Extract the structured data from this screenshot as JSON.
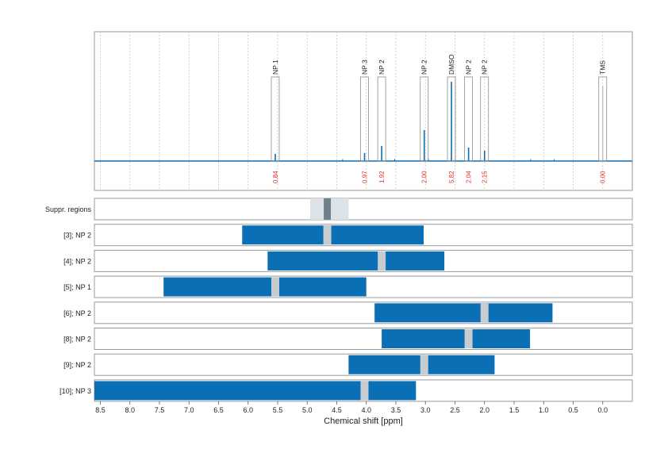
{
  "chart_data": {
    "type": "nmr-spectrum-with-range-bars",
    "xlabel": "Chemical shift [ppm]",
    "x_reversed": true,
    "xlim": [
      8.6,
      -0.5
    ],
    "x_ticks": [
      8.5,
      8.0,
      7.5,
      7.0,
      6.5,
      6.0,
      5.5,
      5.0,
      4.5,
      4.0,
      3.5,
      3.0,
      2.5,
      2.0,
      1.5,
      1.0,
      0.5,
      0.0
    ],
    "x_tick_labels": [
      "8.5",
      "8.0",
      "7.5",
      "7.0",
      "6.5",
      "6.0",
      "5.5",
      "5.0",
      "4.5",
      "4.0",
      "3.5",
      "3.0",
      "2.5",
      "2.0",
      "1.5",
      "1.0",
      "0.5",
      "0.0"
    ],
    "grid": true,
    "colors": {
      "spectrum": "#0a6fb5",
      "bar": "#0a6fb5",
      "marker": "#c7ccd1",
      "integral_text": "#e0322a",
      "suppr_light": "#dde2e8",
      "suppr_dark": "#6e7f8e",
      "frame": "#9a9a9a"
    },
    "peaks": [
      {
        "label": "NP 1",
        "shift": 5.54,
        "integral": "0.84",
        "height": 0.09
      },
      {
        "label": "NP 3",
        "shift": 4.03,
        "integral": "0.97",
        "height": 0.1
      },
      {
        "label": "NP 2",
        "shift": 3.74,
        "integral": "1.92",
        "height": 0.19
      },
      {
        "label": "NP 2",
        "shift": 3.02,
        "integral": "2.00",
        "height": 0.39
      },
      {
        "label": "DMSO",
        "shift": 2.56,
        "integral": "5.82",
        "height": 1.0
      },
      {
        "label": "NP 2",
        "shift": 2.27,
        "integral": "2.04",
        "height": 0.17
      },
      {
        "label": "NP 2",
        "shift": 2.0,
        "integral": "2.15",
        "height": 0.13
      },
      {
        "label": "TMS",
        "shift": 0.0,
        "integral": "0.00",
        "height": 0.95
      }
    ],
    "suppressed_regions": {
      "label": "Suppr. regions",
      "outer": [
        4.95,
        4.3
      ],
      "inner": [
        4.72,
        4.6
      ]
    },
    "ranges": [
      {
        "label": "[3]; NP 2",
        "start": 6.1,
        "end": 3.03,
        "marker": 4.66
      },
      {
        "label": "[4]; NP 2",
        "start": 5.67,
        "end": 2.68,
        "marker": 3.74
      },
      {
        "label": "[5]; NP 1",
        "start": 7.43,
        "end": 4.0,
        "marker": 5.54
      },
      {
        "label": "[6]; NP 2",
        "start": 3.86,
        "end": 0.85,
        "marker": 2.0
      },
      {
        "label": "[8]; NP 2",
        "start": 3.74,
        "end": 1.23,
        "marker": 2.27
      },
      {
        "label": "[9]; NP 2",
        "start": 4.3,
        "end": 1.83,
        "marker": 3.02
      },
      {
        "label": "[10]; NP 3",
        "start": 8.6,
        "end": 3.16,
        "marker": 4.03
      }
    ]
  }
}
